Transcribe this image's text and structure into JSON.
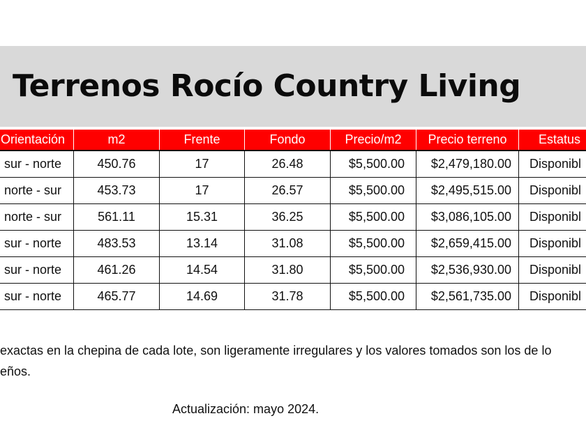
{
  "title": "Terrenos Rocío Country Living",
  "table": {
    "headers": [
      "Orientación",
      "m2",
      "Frente",
      "Fondo",
      "Precio/m2",
      "Precio terreno",
      "Estatus"
    ],
    "rows": [
      [
        "sur - norte",
        "450.76",
        "17",
        "26.48",
        "$5,500.00",
        "$2,479,180.00",
        "Disponibl"
      ],
      [
        "norte - sur",
        "453.73",
        "17",
        "26.57",
        "$5,500.00",
        "$2,495,515.00",
        "Disponibl"
      ],
      [
        "norte - sur",
        "561.11",
        "15.31",
        "36.25",
        "$5,500.00",
        "$3,086,105.00",
        "Disponibl"
      ],
      [
        "sur - norte",
        "483.53",
        "13.14",
        "31.08",
        "$5,500.00",
        "$2,659,415.00",
        "Disponibl"
      ],
      [
        "sur - norte",
        "461.26",
        "14.54",
        "31.80",
        "$5,500.00",
        "$2,536,930.00",
        "Disponibl"
      ],
      [
        "sur - norte",
        "465.77",
        "14.69",
        "31.78",
        "$5,500.00",
        "$2,561,735.00",
        "Disponibl"
      ]
    ]
  },
  "note": {
    "line1": "exactas en la chepina de cada lote, son ligeramente irregulares y los valores tomados son los de lo",
    "line2": "eños."
  },
  "updated": "Actualización: mayo 2024.",
  "colors": {
    "header_bg": "#ff0000",
    "title_band": "#d9d9d9"
  }
}
